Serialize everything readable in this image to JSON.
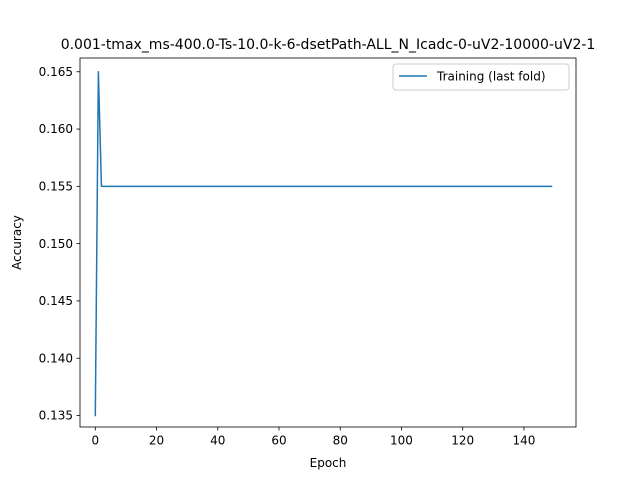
{
  "chart_data": {
    "type": "line",
    "title": "0.001-tmax_ms-400.0-Ts-10.0-k-6-dsetPath-ALL_N_Icadc-0-uV2-10000-uV2-1",
    "xlabel": "Epoch",
    "ylabel": "Accuracy",
    "xlim": [
      -5,
      157
    ],
    "ylim": [
      0.134,
      0.1662
    ],
    "xticks": [
      0,
      20,
      40,
      60,
      80,
      100,
      120,
      140
    ],
    "xtick_labels": [
      "0",
      "20",
      "40",
      "60",
      "80",
      "100",
      "120",
      "140"
    ],
    "yticks": [
      0.135,
      0.14,
      0.145,
      0.15,
      0.155,
      0.16,
      0.165
    ],
    "ytick_labels": [
      "0.135",
      "0.140",
      "0.145",
      "0.150",
      "0.155",
      "0.160",
      "0.165"
    ],
    "grid": false,
    "legend_position": "upper right",
    "series": [
      {
        "name": "Training (last fold)",
        "color": "#1f77b4",
        "x": [
          0,
          1,
          2,
          149
        ],
        "y": [
          0.135,
          0.165,
          0.155,
          0.155
        ]
      }
    ]
  }
}
